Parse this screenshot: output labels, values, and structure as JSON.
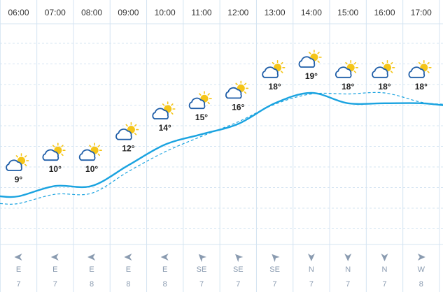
{
  "forecast": {
    "hours": [
      {
        "time": "06:00",
        "temp": "9°",
        "wind_dir": "E",
        "wind_speed": "7",
        "icon": "partly-cloudy-icon"
      },
      {
        "time": "07:00",
        "temp": "10°",
        "wind_dir": "E",
        "wind_speed": "7",
        "icon": "partly-cloudy-icon"
      },
      {
        "time": "08:00",
        "temp": "10°",
        "wind_dir": "E",
        "wind_speed": "8",
        "icon": "partly-cloudy-icon"
      },
      {
        "time": "09:00",
        "temp": "12°",
        "wind_dir": "E",
        "wind_speed": "8",
        "icon": "partly-cloudy-icon"
      },
      {
        "time": "10:00",
        "temp": "14°",
        "wind_dir": "E",
        "wind_speed": "8",
        "icon": "partly-cloudy-icon"
      },
      {
        "time": "11:00",
        "temp": "15°",
        "wind_dir": "SE",
        "wind_speed": "7",
        "icon": "partly-cloudy-icon"
      },
      {
        "time": "12:00",
        "temp": "16°",
        "wind_dir": "SE",
        "wind_speed": "7",
        "icon": "partly-cloudy-icon"
      },
      {
        "time": "13:00",
        "temp": "18°",
        "wind_dir": "SE",
        "wind_speed": "7",
        "icon": "partly-cloudy-icon"
      },
      {
        "time": "14:00",
        "temp": "19°",
        "wind_dir": "N",
        "wind_speed": "7",
        "icon": "partly-cloudy-icon"
      },
      {
        "time": "15:00",
        "temp": "18°",
        "wind_dir": "N",
        "wind_speed": "7",
        "icon": "partly-cloudy-icon"
      },
      {
        "time": "16:00",
        "temp": "18°",
        "wind_dir": "N",
        "wind_speed": "7",
        "icon": "partly-cloudy-icon"
      },
      {
        "time": "17:00",
        "temp": "18°",
        "wind_dir": "W",
        "wind_speed": "8",
        "icon": "partly-cloudy-icon"
      }
    ]
  },
  "chart_data": {
    "type": "line",
    "categories": [
      "06:00",
      "07:00",
      "08:00",
      "09:00",
      "10:00",
      "11:00",
      "12:00",
      "13:00",
      "14:00",
      "15:00",
      "16:00",
      "17:00"
    ],
    "series": [
      {
        "values": [
          9.0,
          10.0,
          10.0,
          12.0,
          14.0,
          15.0,
          16.0,
          18.0,
          19.0,
          18.0,
          18.0,
          18.0
        ],
        "style": "solid"
      },
      {
        "values": [
          8.3,
          9.2,
          9.3,
          11.4,
          13.3,
          14.8,
          16.2,
          17.9,
          18.9,
          18.9,
          19.0,
          18.1
        ],
        "style": "dashed"
      }
    ],
    "ylim": [
      3,
      25
    ],
    "grid": true,
    "colors": {
      "line": "#1aa3e0",
      "grid": "#d4e4f2",
      "sun": "#f5c518",
      "cloud": "#1f5ea8",
      "wind": "#8a9bb0"
    }
  }
}
